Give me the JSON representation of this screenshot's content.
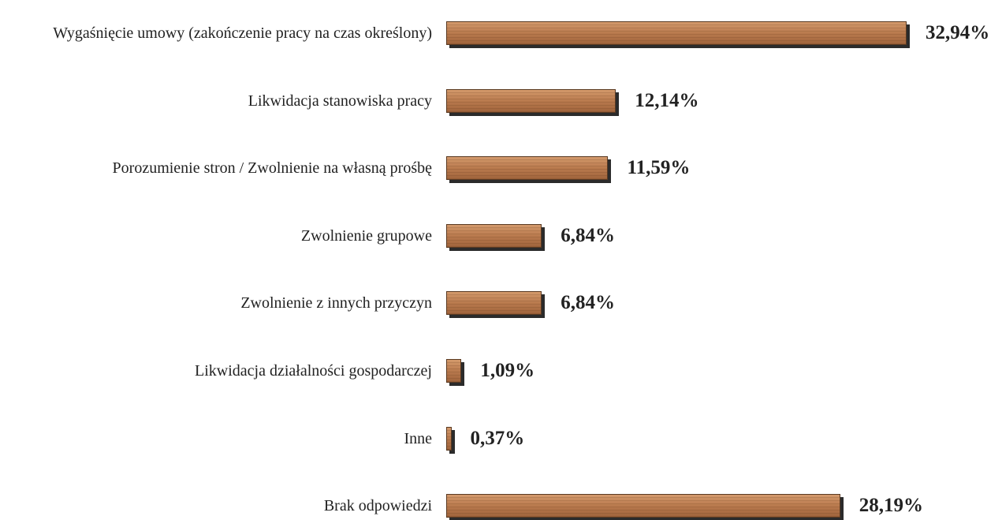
{
  "chart_data": {
    "type": "bar",
    "orientation": "horizontal",
    "categories": [
      "Wygaśnięcie umowy (zakończenie pracy na czas określony)",
      "Likwidacja stanowiska pracy",
      "Porozumienie stron / Zwolnienie na własną prośbę",
      "Zwolnienie grupowe",
      "Zwolnienie z innych przyczyn",
      "Likwidacja działalności gospodarczej",
      "Inne",
      "Brak odpowiedzi"
    ],
    "values": [
      32.94,
      12.14,
      11.59,
      6.84,
      6.84,
      1.09,
      0.37,
      28.19
    ],
    "value_labels": [
      "32,94%",
      "12,14%",
      "11,59%",
      "6,84%",
      "6,84%",
      "1,09%",
      "0,37%",
      "28,19%"
    ],
    "color": "#b97a4e"
  }
}
